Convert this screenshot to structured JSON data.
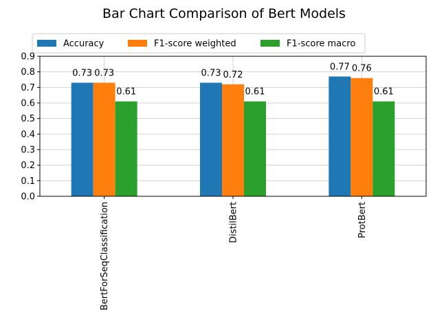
{
  "chart_data": {
    "type": "bar",
    "title": "Bar Chart Comparison of Bert Models",
    "xlabel": "",
    "ylabel": "",
    "categories": [
      "BertForSeqClassification",
      "DistilBert",
      "ProtBert"
    ],
    "series": [
      {
        "name": "Accuracy",
        "values": [
          0.73,
          0.73,
          0.77
        ],
        "color": "#1f77b4"
      },
      {
        "name": "F1-score weighted",
        "values": [
          0.73,
          0.72,
          0.76
        ],
        "color": "#ff7f0e"
      },
      {
        "name": "F1-score macro",
        "values": [
          0.61,
          0.61,
          0.61
        ],
        "color": "#2ca02c"
      }
    ],
    "ylim": [
      0,
      0.9
    ],
    "yticks": [
      0.0,
      0.1,
      0.2,
      0.3,
      0.4,
      0.5,
      0.6,
      0.7,
      0.8,
      0.9
    ],
    "grid": true,
    "legend_position": "top-center"
  }
}
